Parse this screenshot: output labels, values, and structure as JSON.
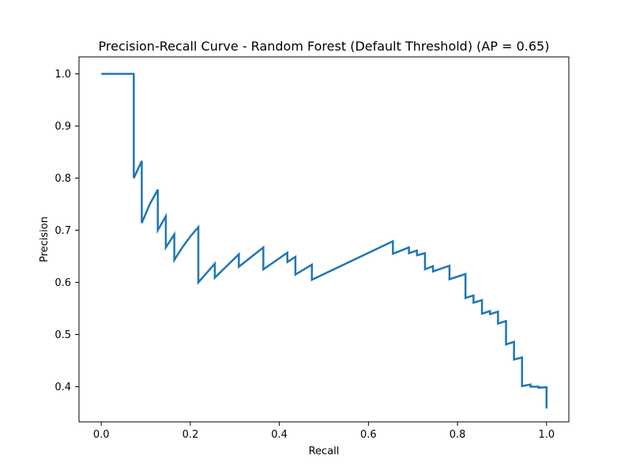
{
  "chart_data": {
    "type": "line",
    "title": "Precision-Recall Curve - Random Forest (Default Threshold) (AP = 0.65)",
    "xlabel": "Recall",
    "ylabel": "Precision",
    "xlim": [
      -0.05,
      1.05
    ],
    "ylim": [
      0.3325,
      1.0325
    ],
    "grid": false,
    "xticks": [
      0.0,
      0.2,
      0.4,
      0.6,
      0.8,
      1.0
    ],
    "xtick_labels": [
      "0.0",
      "0.2",
      "0.4",
      "0.6",
      "0.8",
      "1.0"
    ],
    "yticks": [
      0.4,
      0.5,
      0.6,
      0.7,
      0.8,
      0.9,
      1.0
    ],
    "ytick_labels": [
      "0.4",
      "0.5",
      "0.6",
      "0.7",
      "0.8",
      "0.9",
      "1.0"
    ],
    "line_color": "#1f77b4",
    "series": [
      {
        "x": [
          0.0,
          0.073,
          0.073,
          0.091,
          0.091,
          0.109,
          0.127,
          0.127,
          0.145,
          0.145,
          0.164,
          0.164,
          0.182,
          0.2,
          0.218,
          0.218,
          0.255,
          0.255,
          0.309,
          0.309,
          0.364,
          0.364,
          0.418,
          0.418,
          0.436,
          0.436,
          0.473,
          0.473,
          0.655,
          0.655,
          0.691,
          0.691,
          0.709,
          0.709,
          0.727,
          0.727,
          0.745,
          0.745,
          0.782,
          0.782,
          0.818,
          0.818,
          0.836,
          0.836,
          0.855,
          0.855,
          0.873,
          0.873,
          0.891,
          0.891,
          0.909,
          0.909,
          0.927,
          0.927,
          0.945,
          0.945,
          0.964,
          0.964,
          0.982,
          0.982,
          1.0,
          1.0
        ],
        "y": [
          1.0,
          1.0,
          0.8,
          0.833,
          0.714,
          0.75,
          0.778,
          0.7,
          0.727,
          0.667,
          0.692,
          0.643,
          0.667,
          0.688,
          0.706,
          0.6,
          0.636,
          0.609,
          0.654,
          0.63,
          0.667,
          0.625,
          0.657,
          0.639,
          0.649,
          0.615,
          0.634,
          0.605,
          0.679,
          0.655,
          0.667,
          0.656,
          0.661,
          0.652,
          0.656,
          0.625,
          0.631,
          0.621,
          0.632,
          0.606,
          0.616,
          0.57,
          0.575,
          0.561,
          0.566,
          0.54,
          0.545,
          0.539,
          0.544,
          0.521,
          0.526,
          0.481,
          0.486,
          0.452,
          0.456,
          0.401,
          0.404,
          0.4,
          0.4,
          0.398,
          0.399,
          0.358
        ]
      }
    ]
  }
}
